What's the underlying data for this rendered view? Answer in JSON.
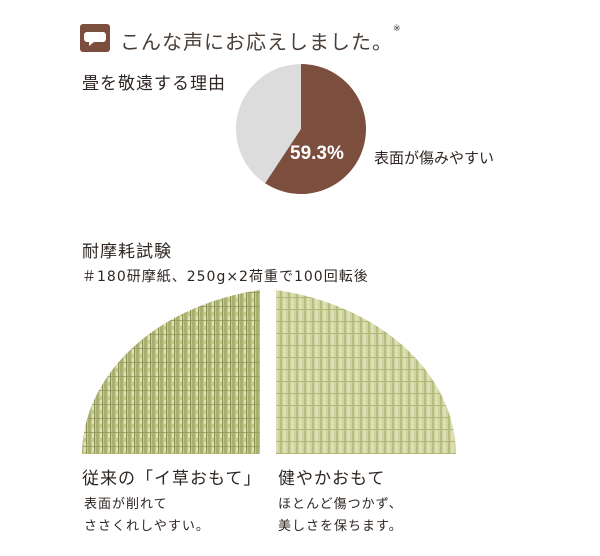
{
  "header": {
    "icon": "speech-bubble-icon",
    "title": "こんな声にお応えしました。",
    "mark": "※"
  },
  "reason": {
    "heading": "畳を敬遠する理由",
    "chart_data": {
      "type": "pie",
      "slices": [
        {
          "label": "表面が傷みやすい",
          "value": 59.3,
          "color": "#7b4e3e"
        },
        {
          "label": "",
          "value": 40.7,
          "color": "#dcdcdc"
        }
      ],
      "value_label": "59.3%",
      "slice_label": "表面が傷みやすい"
    }
  },
  "test": {
    "heading": "耐摩耗試験",
    "condition": "＃180研摩紙、250g×2荷重で100回転後"
  },
  "comparison": {
    "left": {
      "title": "従来の「イ草おもて」",
      "body": [
        "表面が削れて",
        "ささくれしやすい。"
      ]
    },
    "right": {
      "title": "健やかおもて",
      "body": [
        "ほとんど傷つかず、",
        "美しさを保ちます。"
      ]
    }
  },
  "colors": {
    "pie_main": "#7b4e3e",
    "pie_rest": "#dcdcdc",
    "tatami_green": "#c9cd95"
  }
}
